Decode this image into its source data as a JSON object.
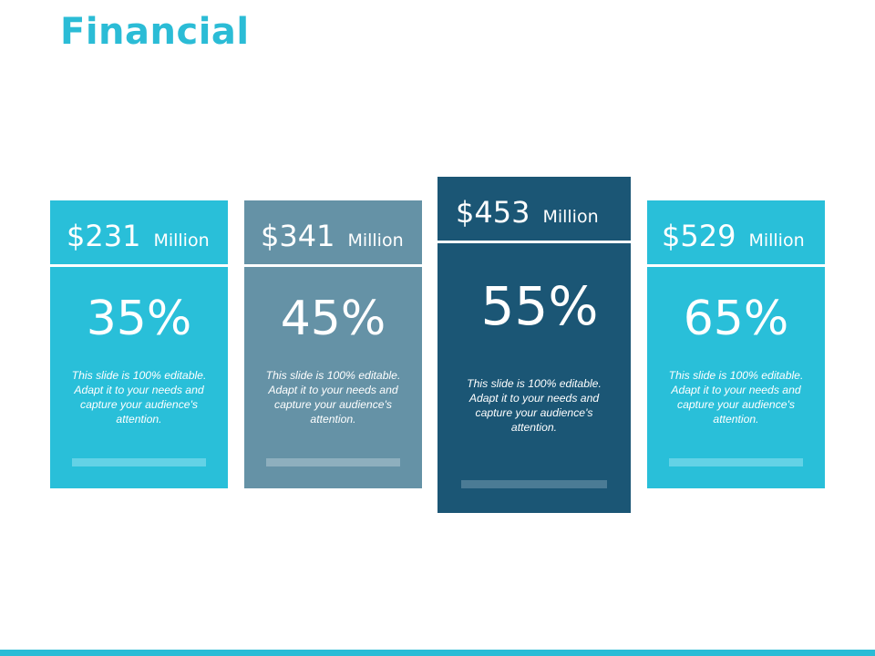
{
  "title": "Financial",
  "colors": {
    "title": "#2bbcd6",
    "bottom_line": "#2bbcd6",
    "card_light": "#29bfd9",
    "card_mid": "#6592a6",
    "card_dark": "#1b5675",
    "bar_light": "#63d2e6",
    "bar_mid": "#8eafbe",
    "bar_dark": "#4b7b95"
  },
  "cards": [
    {
      "amount": "$231",
      "unit": "Million",
      "percent": "35%",
      "description": "This slide is 100% editable. Adapt it to your needs and capture your audience's attention."
    },
    {
      "amount": "$341",
      "unit": "Million",
      "percent": "45%",
      "description": "This slide is 100% editable. Adapt it to your needs and capture your audience's attention."
    },
    {
      "amount": "$453",
      "unit": "Million",
      "percent": "55%",
      "description": "This slide is 100% editable. Adapt it to your needs and capture your audience's attention."
    },
    {
      "amount": "$529",
      "unit": "Million",
      "percent": "65%",
      "description": "This slide is 100% editable. Adapt it to your needs and capture your audience's attention."
    }
  ]
}
